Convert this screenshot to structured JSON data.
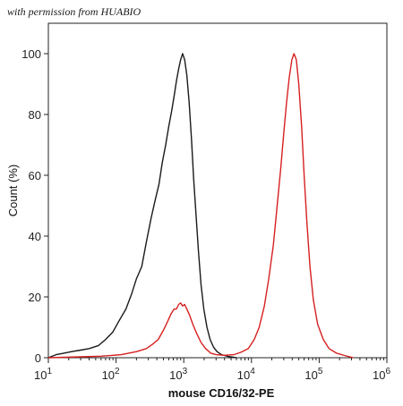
{
  "watermark": "with permission from HUABIO",
  "chart_data": {
    "type": "line",
    "xlabel": "mouse CD16/32-PE",
    "ylabel": "Count (%)",
    "xscale": "log",
    "xlim": [
      10,
      1000000
    ],
    "ylim": [
      0,
      110
    ],
    "x_tick_labels": [
      {
        "value": 10,
        "base": "10",
        "exp": "1"
      },
      {
        "value": 100,
        "base": "10",
        "exp": "2"
      },
      {
        "value": 1000,
        "base": "10",
        "exp": "3"
      },
      {
        "value": 10000,
        "base": "10",
        "exp": "4"
      },
      {
        "value": 100000,
        "base": "10",
        "exp": "5"
      },
      {
        "value": 1000000,
        "base": "10",
        "exp": "6"
      }
    ],
    "y_ticks": [
      0,
      20,
      40,
      60,
      80,
      100
    ],
    "series": [
      {
        "color": "#1a1a1a",
        "points": [
          [
            10,
            0
          ],
          [
            13,
            1
          ],
          [
            17,
            1.5
          ],
          [
            22,
            2
          ],
          [
            30,
            2.5
          ],
          [
            40,
            3
          ],
          [
            55,
            4
          ],
          [
            70,
            6
          ],
          [
            90,
            8.5
          ],
          [
            110,
            12
          ],
          [
            140,
            16
          ],
          [
            170,
            21
          ],
          [
            200,
            26
          ],
          [
            240,
            30
          ],
          [
            280,
            38
          ],
          [
            330,
            46
          ],
          [
            380,
            52
          ],
          [
            430,
            57
          ],
          [
            480,
            64
          ],
          [
            540,
            70
          ],
          [
            600,
            76
          ],
          [
            660,
            81
          ],
          [
            720,
            86
          ],
          [
            780,
            91
          ],
          [
            840,
            95
          ],
          [
            900,
            98
          ],
          [
            960,
            100
          ],
          [
            1030,
            98
          ],
          [
            1110,
            93
          ],
          [
            1200,
            84
          ],
          [
            1300,
            72
          ],
          [
            1400,
            59
          ],
          [
            1520,
            47
          ],
          [
            1650,
            35
          ],
          [
            1800,
            24
          ],
          [
            1980,
            16
          ],
          [
            2200,
            10
          ],
          [
            2450,
            6
          ],
          [
            2750,
            3.5
          ],
          [
            3100,
            2
          ],
          [
            3600,
            1
          ],
          [
            4500,
            0.4
          ],
          [
            6000,
            0
          ]
        ]
      },
      {
        "color": "#d62020",
        "points": [
          [
            10,
            0
          ],
          [
            30,
            0.3
          ],
          [
            60,
            0.5
          ],
          [
            120,
            1
          ],
          [
            200,
            2
          ],
          [
            280,
            3
          ],
          [
            350,
            4.5
          ],
          [
            420,
            6
          ],
          [
            500,
            9
          ],
          [
            580,
            12
          ],
          [
            650,
            14.5
          ],
          [
            720,
            16
          ],
          [
            780,
            16
          ],
          [
            840,
            17.5
          ],
          [
            900,
            18
          ],
          [
            960,
            17
          ],
          [
            1030,
            17.5
          ],
          [
            1110,
            16
          ],
          [
            1220,
            14
          ],
          [
            1360,
            11
          ],
          [
            1550,
            8
          ],
          [
            1800,
            5
          ],
          [
            2100,
            3
          ],
          [
            2500,
            1.5
          ],
          [
            3000,
            1
          ],
          [
            4000,
            0.8
          ],
          [
            5500,
            1
          ],
          [
            7000,
            1.8
          ],
          [
            9000,
            3
          ],
          [
            11000,
            6
          ],
          [
            13000,
            10
          ],
          [
            15500,
            17
          ],
          [
            18000,
            26
          ],
          [
            21000,
            37
          ],
          [
            24000,
            50
          ],
          [
            27000,
            62
          ],
          [
            30000,
            74
          ],
          [
            33000,
            84
          ],
          [
            36000,
            92
          ],
          [
            39500,
            98
          ],
          [
            42500,
            100
          ],
          [
            46000,
            98
          ],
          [
            50000,
            90
          ],
          [
            55000,
            76
          ],
          [
            60000,
            60
          ],
          [
            66000,
            44
          ],
          [
            73000,
            30
          ],
          [
            82000,
            19
          ],
          [
            95000,
            11
          ],
          [
            115000,
            6
          ],
          [
            140000,
            3
          ],
          [
            180000,
            1.5
          ],
          [
            250000,
            0.6
          ],
          [
            320000,
            0
          ]
        ]
      }
    ]
  }
}
